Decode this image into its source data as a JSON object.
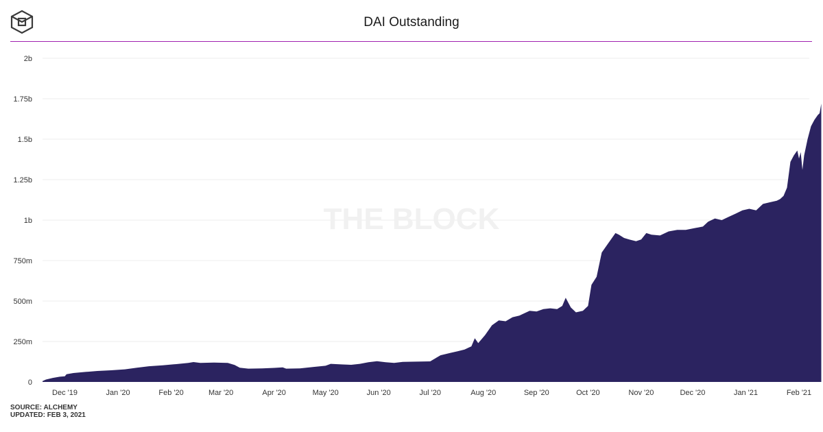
{
  "header": {
    "title": "DAI Outstanding",
    "logo_icon": "the-block-cube-icon"
  },
  "watermark": "THE BLOCK",
  "footer": {
    "source": "SOURCE: ALCHEMY",
    "updated": "UPDATED: FEB 3, 2021"
  },
  "colors": {
    "fill": "#2b2360",
    "rule": "#a01fb0",
    "grid": "#ececec",
    "watermark": "#f1f1f1"
  },
  "chart_data": {
    "type": "area",
    "title": "DAI Outstanding",
    "xlabel": "",
    "ylabel": "",
    "ylim": [
      0,
      2000000000
    ],
    "grid": true,
    "yticks": [
      {
        "value": 0,
        "label": "0"
      },
      {
        "value": 250000000,
        "label": "250m"
      },
      {
        "value": 500000000,
        "label": "500m"
      },
      {
        "value": 750000000,
        "label": "750m"
      },
      {
        "value": 1000000000,
        "label": "1b"
      },
      {
        "value": 1250000000,
        "label": "1.25b"
      },
      {
        "value": 1500000000,
        "label": "1.5b"
      },
      {
        "value": 1750000000,
        "label": "1.75b"
      },
      {
        "value": 2000000000,
        "label": "2b"
      }
    ],
    "xticks": [
      {
        "day": 13,
        "label": "Dec '19"
      },
      {
        "day": 44,
        "label": "Jan '20"
      },
      {
        "day": 75,
        "label": "Feb '20"
      },
      {
        "day": 104,
        "label": "Mar '20"
      },
      {
        "day": 135,
        "label": "Apr '20"
      },
      {
        "day": 165,
        "label": "May '20"
      },
      {
        "day": 196,
        "label": "Jun '20"
      },
      {
        "day": 226,
        "label": "Jul '20"
      },
      {
        "day": 257,
        "label": "Aug '20"
      },
      {
        "day": 288,
        "label": "Sep '20"
      },
      {
        "day": 318,
        "label": "Oct '20"
      },
      {
        "day": 349,
        "label": "Nov '20"
      },
      {
        "day": 379,
        "label": "Dec '20"
      },
      {
        "day": 410,
        "label": "Jan '21"
      },
      {
        "day": 441,
        "label": "Feb '21"
      }
    ],
    "x_range_days": [
      0,
      447
    ],
    "series": [
      {
        "name": "DAI Outstanding",
        "points": [
          [
            0,
            5000000
          ],
          [
            2,
            15000000
          ],
          [
            6,
            25000000
          ],
          [
            10,
            32000000
          ],
          [
            13,
            35000000
          ],
          [
            14,
            48000000
          ],
          [
            18,
            55000000
          ],
          [
            25,
            62000000
          ],
          [
            32,
            68000000
          ],
          [
            40,
            72000000
          ],
          [
            48,
            78000000
          ],
          [
            55,
            88000000
          ],
          [
            62,
            97000000
          ],
          [
            70,
            103000000
          ],
          [
            78,
            110000000
          ],
          [
            85,
            118000000
          ],
          [
            88,
            123000000
          ],
          [
            92,
            118000000
          ],
          [
            100,
            120000000
          ],
          [
            108,
            118000000
          ],
          [
            112,
            105000000
          ],
          [
            115,
            88000000
          ],
          [
            120,
            82000000
          ],
          [
            128,
            84000000
          ],
          [
            135,
            87000000
          ],
          [
            140,
            90000000
          ],
          [
            142,
            82000000
          ],
          [
            150,
            84000000
          ],
          [
            158,
            93000000
          ],
          [
            165,
            100000000
          ],
          [
            168,
            112000000
          ],
          [
            175,
            108000000
          ],
          [
            180,
            106000000
          ],
          [
            185,
            112000000
          ],
          [
            190,
            122000000
          ],
          [
            195,
            128000000
          ],
          [
            200,
            122000000
          ],
          [
            205,
            118000000
          ],
          [
            210,
            124000000
          ],
          [
            215,
            125000000
          ],
          [
            226,
            127000000
          ],
          [
            228,
            140000000
          ],
          [
            232,
            165000000
          ],
          [
            238,
            180000000
          ],
          [
            242,
            190000000
          ],
          [
            246,
            200000000
          ],
          [
            248,
            210000000
          ],
          [
            250,
            220000000
          ],
          [
            252,
            270000000
          ],
          [
            254,
            240000000
          ],
          [
            258,
            290000000
          ],
          [
            262,
            350000000
          ],
          [
            266,
            380000000
          ],
          [
            270,
            375000000
          ],
          [
            274,
            400000000
          ],
          [
            278,
            410000000
          ],
          [
            280,
            420000000
          ],
          [
            284,
            440000000
          ],
          [
            288,
            435000000
          ],
          [
            292,
            450000000
          ],
          [
            296,
            455000000
          ],
          [
            300,
            450000000
          ],
          [
            303,
            470000000
          ],
          [
            305,
            520000000
          ],
          [
            308,
            460000000
          ],
          [
            311,
            430000000
          ],
          [
            315,
            440000000
          ],
          [
            318,
            470000000
          ],
          [
            320,
            600000000
          ],
          [
            323,
            650000000
          ],
          [
            326,
            800000000
          ],
          [
            330,
            860000000
          ],
          [
            334,
            920000000
          ],
          [
            336,
            910000000
          ],
          [
            339,
            890000000
          ],
          [
            342,
            880000000
          ],
          [
            346,
            870000000
          ],
          [
            349,
            880000000
          ],
          [
            352,
            920000000
          ],
          [
            355,
            910000000
          ],
          [
            360,
            905000000
          ],
          [
            365,
            930000000
          ],
          [
            370,
            940000000
          ],
          [
            375,
            940000000
          ],
          [
            380,
            950000000
          ],
          [
            385,
            960000000
          ],
          [
            388,
            990000000
          ],
          [
            392,
            1010000000
          ],
          [
            396,
            1000000000
          ],
          [
            400,
            1020000000
          ],
          [
            404,
            1040000000
          ],
          [
            408,
            1060000000
          ],
          [
            412,
            1070000000
          ],
          [
            416,
            1060000000
          ],
          [
            420,
            1100000000
          ],
          [
            424,
            1110000000
          ],
          [
            428,
            1120000000
          ],
          [
            430,
            1130000000
          ],
          [
            432,
            1150000000
          ],
          [
            434,
            1200000000
          ],
          [
            436,
            1360000000
          ],
          [
            438,
            1400000000
          ],
          [
            440,
            1430000000
          ],
          [
            441,
            1380000000
          ],
          [
            442,
            1420000000
          ],
          [
            443,
            1310000000
          ],
          [
            444,
            1400000000
          ],
          [
            446,
            1500000000
          ],
          [
            448,
            1580000000
          ],
          [
            450,
            1620000000
          ],
          [
            452,
            1650000000
          ],
          [
            453,
            1660000000
          ],
          [
            454,
            1720000000
          ]
        ]
      }
    ]
  }
}
